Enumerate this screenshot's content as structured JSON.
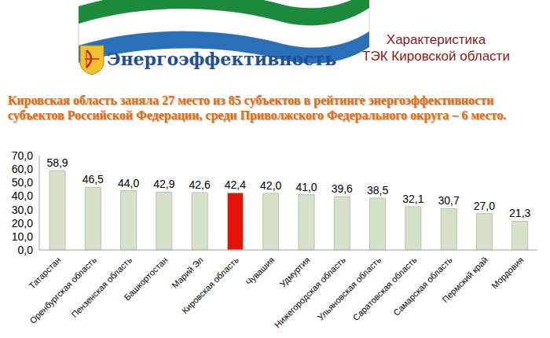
{
  "chart_data": {
    "type": "bar",
    "title": "Кировская область заняла 27 место из 85 субъектов в рейтинге энергоэффективности субъектов Российской Федерации, среди Приволжского Федерального округа – 6 место.",
    "annotations": [
      "Энергоэффективность",
      "Характеристика",
      "ТЭК Кировской области"
    ],
    "categories": [
      "Татарстан",
      "Оренбургская область",
      "Пензенская область",
      "Башкортостан",
      "Марий Эл",
      "Кировская область",
      "Чувашия",
      "Удмуртия",
      "Нижегородская область",
      "Ульяновская область",
      "Саратовская область",
      "Самарская область",
      "Пермский край",
      "Мордовия"
    ],
    "values": [
      58.9,
      46.5,
      44.0,
      42.9,
      42.6,
      42.4,
      42.0,
      41.0,
      39.6,
      38.5,
      32.1,
      30.7,
      27.0,
      21.3
    ],
    "value_labels": [
      "58,9",
      "46,5",
      "44,0",
      "42,9",
      "42,6",
      "42,4",
      "42,0",
      "41,0",
      "39,6",
      "38,5",
      "32,1",
      "30,7",
      "27,0",
      "21,3"
    ],
    "colors": [
      "#d7e0c8",
      "#d7e0c8",
      "#d7e0c8",
      "#d7e0c8",
      "#d7e0c8",
      "#e3120b",
      "#d7e0c8",
      "#d7e0c8",
      "#d7e0c8",
      "#d7e0c8",
      "#d7e0c8",
      "#d7e0c8",
      "#d7e0c8",
      "#d7e0c8"
    ],
    "ylim": [
      0,
      70
    ],
    "yticks": [
      {
        "value": 0,
        "label": "0,0"
      },
      {
        "value": 10,
        "label": "10,0"
      },
      {
        "value": 20,
        "label": "20,0"
      },
      {
        "value": 30,
        "label": "30,0"
      },
      {
        "value": 40,
        "label": "40,0"
      },
      {
        "value": 50,
        "label": "50,0"
      },
      {
        "value": 60,
        "label": "60,0"
      },
      {
        "value": 70,
        "label": "70,0"
      }
    ],
    "data_labels": true,
    "grid": false
  }
}
